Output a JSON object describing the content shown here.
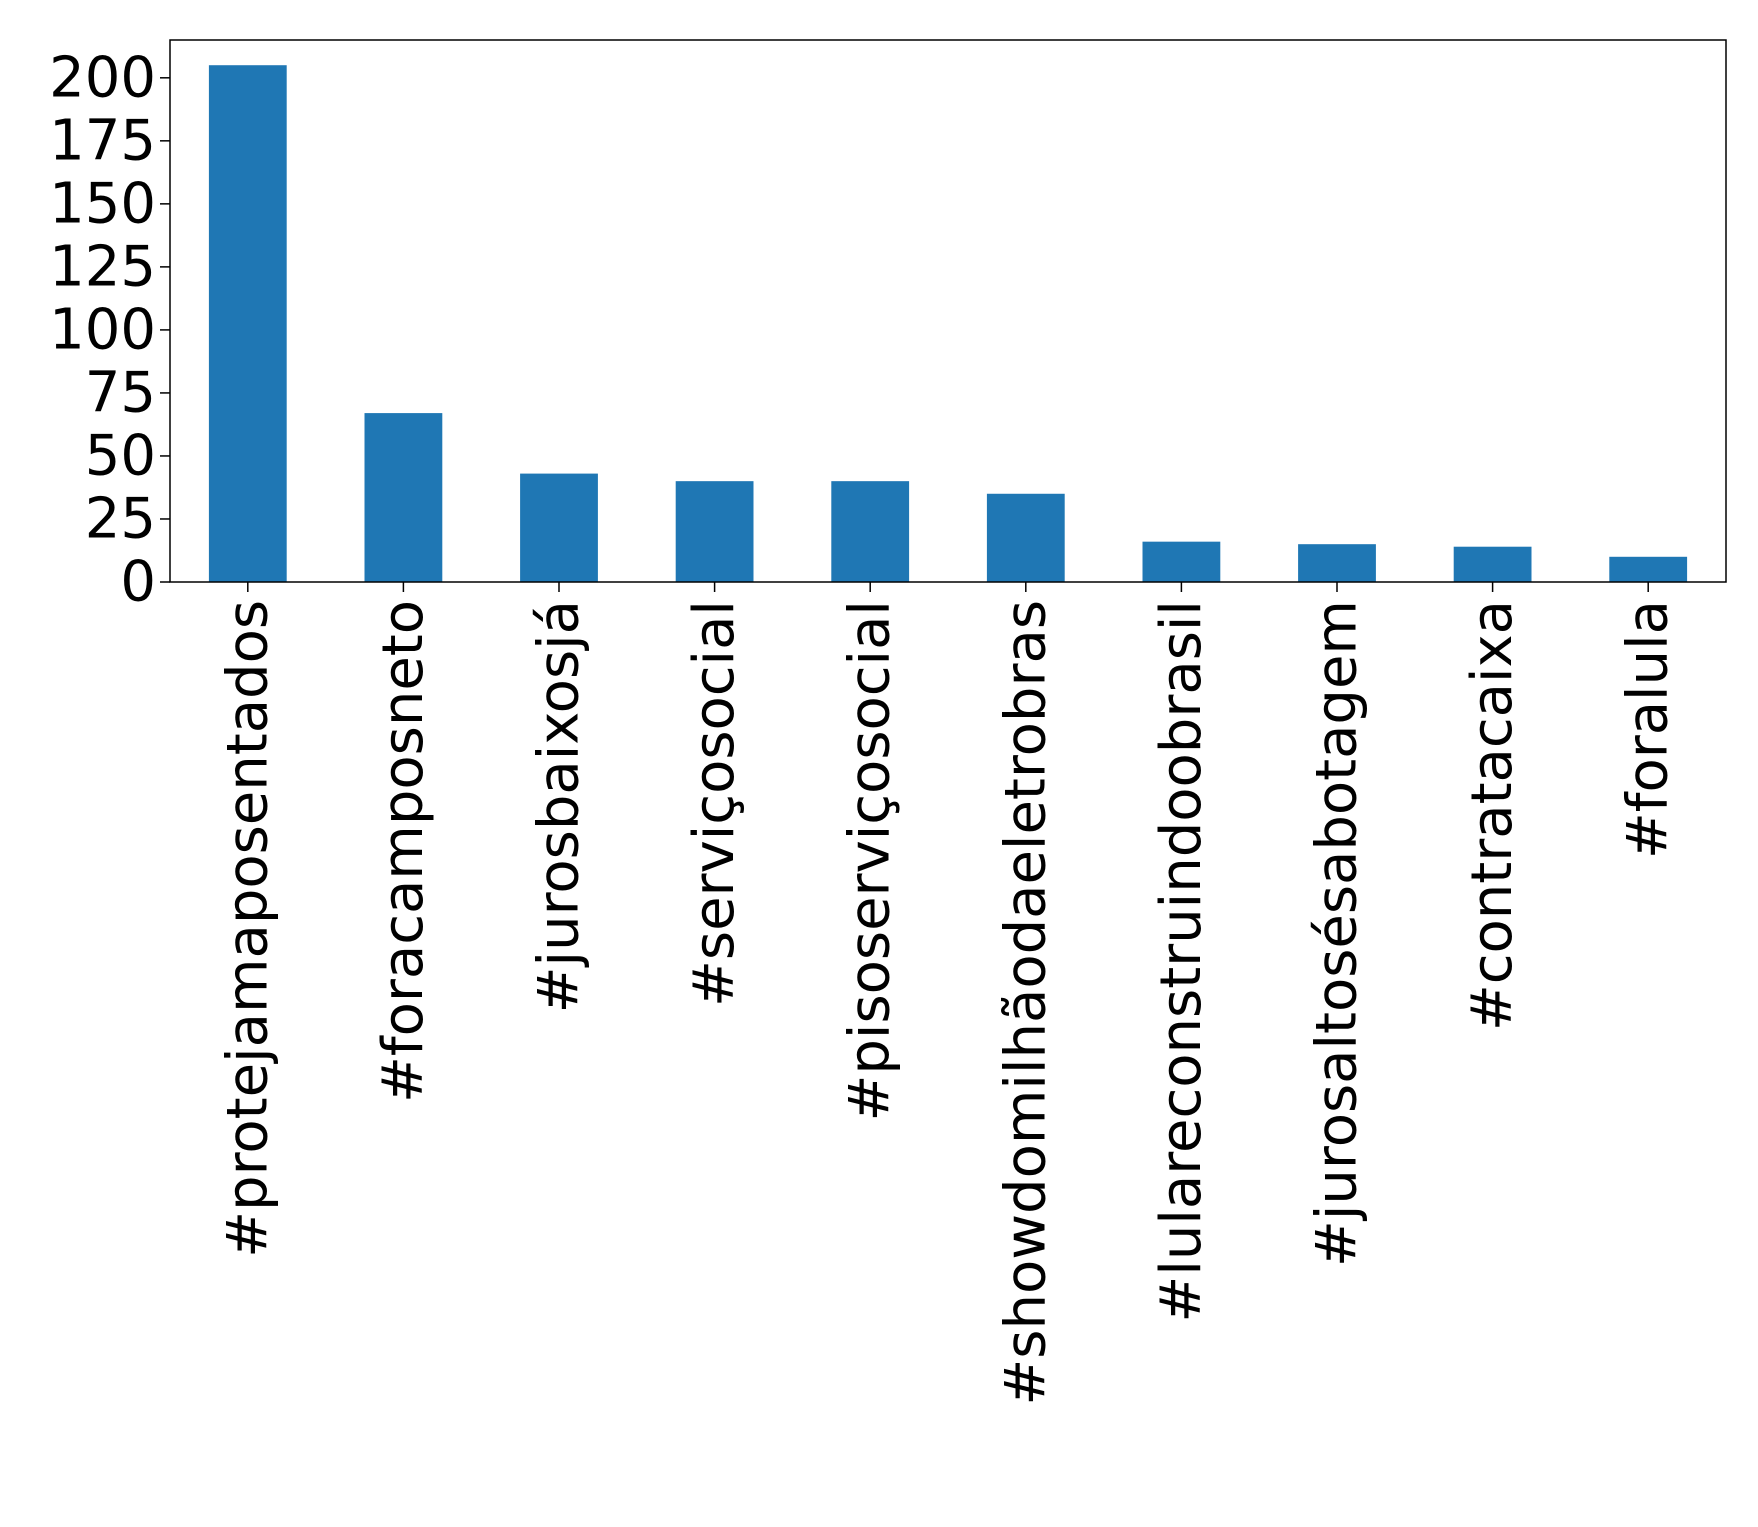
{
  "chart_data": {
    "type": "bar",
    "title": "",
    "xlabel": "",
    "ylabel": "",
    "categories": [
      "#protejamaposentados",
      "#foracamposneto",
      "#jurosbaixosjá",
      "#serviçosocial",
      "#pisoserviçosocial",
      "#showdomilhãodaeletrobras",
      "#lulareconstruindoobrasil",
      "#jurosaltosésabotagem",
      "#contratacaixa",
      "#foralula"
    ],
    "values": [
      205,
      67,
      43,
      40,
      40,
      35,
      16,
      15,
      14,
      10
    ],
    "ylim": [
      0,
      215
    ],
    "yticks": [
      0,
      25,
      50,
      75,
      100,
      125,
      150,
      175,
      200
    ],
    "grid": false,
    "legend": "none",
    "colors": {
      "bar": "#1f77b4",
      "axis": "#000000",
      "background": "#ffffff"
    }
  }
}
